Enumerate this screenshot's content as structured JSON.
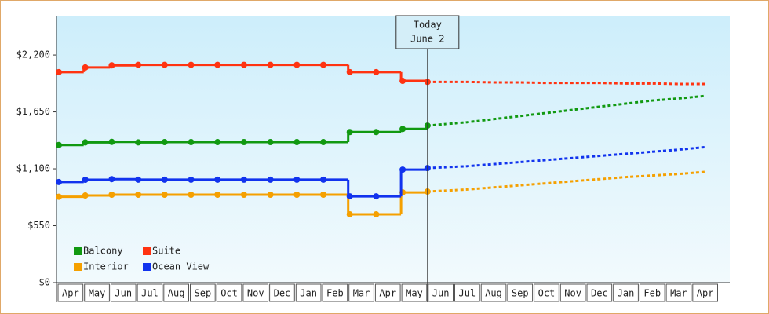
{
  "chart_data": {
    "type": "step-line",
    "annotation": [
      "Today",
      "June 2"
    ],
    "categories": [
      "Apr",
      "May",
      "Jun",
      "Jul",
      "Aug",
      "Sep",
      "Oct",
      "Nov",
      "Dec",
      "Jan",
      "Feb",
      "Mar",
      "Apr",
      "May",
      "Jun",
      "Jul",
      "Aug",
      "Sep",
      "Oct",
      "Nov",
      "Dec",
      "Jan",
      "Feb",
      "Mar",
      "Apr"
    ],
    "today_index": 14,
    "ylim": [
      0,
      2580
    ],
    "yticks": [
      {
        "value": 0,
        "label": "$0"
      },
      {
        "value": 550,
        "label": "$550"
      },
      {
        "value": 1100,
        "label": "$1,100"
      },
      {
        "value": 1650,
        "label": "$1,650"
      },
      {
        "value": 2200,
        "label": "$2,200"
      }
    ],
    "series": [
      {
        "name": "Balcony",
        "color": "#119911",
        "values": [
          1330,
          1355,
          1360,
          1355,
          1358,
          1358,
          1358,
          1358,
          1358,
          1358,
          1358,
          1455,
          1455,
          1485,
          null,
          null,
          null,
          null,
          null,
          null,
          null,
          null,
          null,
          null,
          null
        ],
        "forecast": [
          null,
          null,
          null,
          null,
          null,
          null,
          null,
          null,
          null,
          null,
          null,
          null,
          null,
          null,
          1517,
          1550,
          1580,
          1610,
          1640,
          1670,
          1700,
          1730,
          1760,
          1780,
          1805
        ]
      },
      {
        "name": "Suite",
        "color": "#ff3311",
        "values": [
          2035,
          2080,
          2100,
          2105,
          2105,
          2105,
          2105,
          2105,
          2105,
          2105,
          2105,
          2035,
          2035,
          1950,
          null,
          null,
          null,
          null,
          null,
          null,
          null,
          null,
          null,
          null,
          null
        ],
        "forecast": [
          null,
          null,
          null,
          null,
          null,
          null,
          null,
          null,
          null,
          null,
          null,
          null,
          null,
          null,
          1940,
          1940,
          1935,
          1935,
          1930,
          1930,
          1930,
          1925,
          1925,
          1920,
          1920
        ]
      },
      {
        "name": "Interior",
        "color": "#f5a000",
        "values": [
          830,
          842,
          850,
          850,
          850,
          850,
          850,
          850,
          850,
          850,
          850,
          660,
          660,
          872,
          null,
          null,
          null,
          null,
          null,
          null,
          null,
          null,
          null,
          null,
          null
        ],
        "forecast": [
          null,
          null,
          null,
          null,
          null,
          null,
          null,
          null,
          null,
          null,
          null,
          null,
          null,
          null,
          880,
          900,
          920,
          940,
          960,
          980,
          1000,
          1020,
          1035,
          1050,
          1070
        ]
      },
      {
        "name": "Ocean View",
        "color": "#1133ee",
        "values": [
          972,
          994,
          1000,
          995,
          995,
          995,
          995,
          995,
          995,
          995,
          995,
          834,
          834,
          1092,
          null,
          null,
          null,
          null,
          null,
          null,
          null,
          null,
          null,
          null,
          null
        ],
        "forecast": [
          null,
          null,
          null,
          null,
          null,
          null,
          null,
          null,
          null,
          null,
          null,
          null,
          null,
          null,
          1107,
          1125,
          1145,
          1165,
          1185,
          1205,
          1225,
          1245,
          1265,
          1285,
          1310
        ]
      }
    ]
  }
}
